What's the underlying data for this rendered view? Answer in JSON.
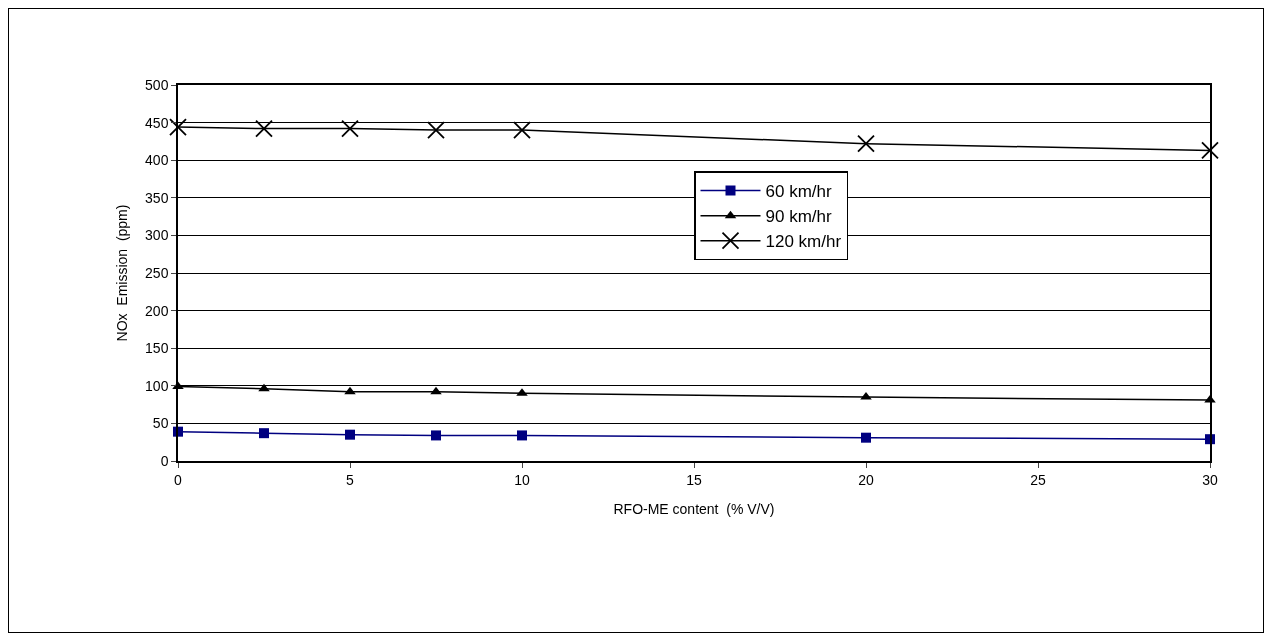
{
  "chart_data": {
    "type": "line",
    "xlabel": "RFO-ME content  (% V/V)",
    "ylabel": "NOx  Emission  (ppm)",
    "xlim": [
      0,
      30
    ],
    "xticks": [
      0,
      5,
      10,
      15,
      20,
      25,
      30
    ],
    "ylim": [
      0,
      500
    ],
    "yticks": [
      0,
      50,
      100,
      150,
      200,
      250,
      300,
      350,
      400,
      450,
      500
    ],
    "grid": "y",
    "legend": "right",
    "line_style": "solid",
    "x": [
      0,
      2.5,
      5,
      7.5,
      10,
      20,
      30
    ],
    "series": [
      {
        "name": "60 km/hr",
        "color": "#000080",
        "marker": "square",
        "values": [
          39,
          37,
          35,
          34,
          34,
          31,
          29
        ]
      },
      {
        "name": "90 km/hr",
        "color": "#000000",
        "marker": "triangle",
        "values": [
          99,
          96,
          92,
          92,
          90,
          85,
          81
        ]
      },
      {
        "name": "120 km/hr",
        "color": "#000000",
        "marker": "cross",
        "values": [
          444,
          442,
          442,
          440,
          440,
          422,
          413
        ]
      }
    ]
  }
}
